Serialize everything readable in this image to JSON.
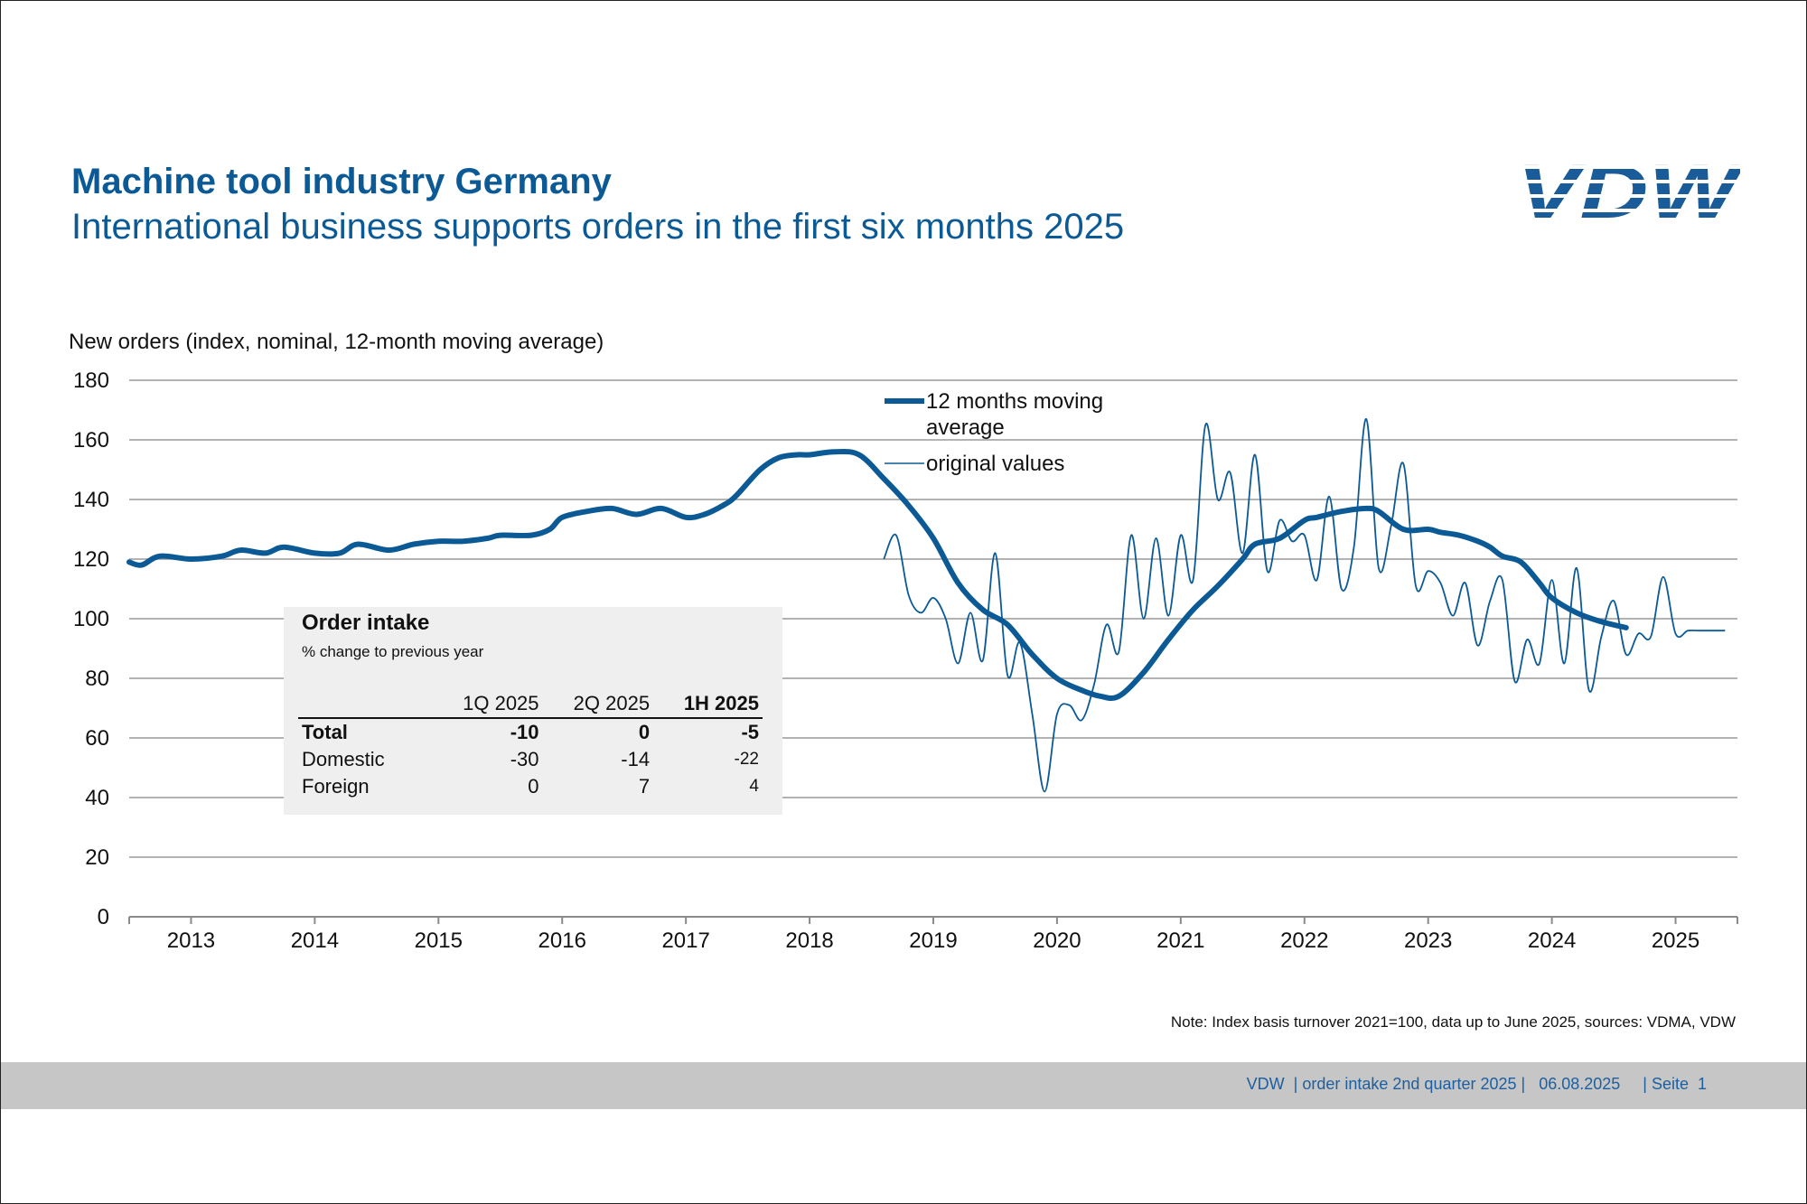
{
  "header": {
    "title": "Machine tool industry Germany",
    "subtitle": "International business supports orders in the first six months 2025",
    "logo_text": "VDW",
    "brand_color": "#1a5c9a"
  },
  "chart_data": {
    "type": "line",
    "title": "New orders (index, nominal, 12-month moving average)",
    "ylabel": "New orders (index, nominal, 12-month moving average)",
    "xlabel": "",
    "ylim": [
      0,
      180
    ],
    "yticks": [
      "0",
      "20",
      "40",
      "60",
      "80",
      "100",
      "120",
      "140",
      "160",
      "180"
    ],
    "xlim": [
      2012.5,
      2025.5
    ],
    "year_labels": [
      "2013",
      "2014",
      "2015",
      "2016",
      "2017",
      "2018",
      "2019",
      "2020",
      "2021",
      "2022",
      "2023",
      "2024",
      "2025"
    ],
    "grid": true,
    "legend_position": "top-center",
    "series": [
      {
        "name": "12 months moving average",
        "color": "#0b5a96",
        "x": [
          2012.5,
          2012.6,
          2012.75,
          2013.0,
          2013.25,
          2013.4,
          2013.6,
          2013.75,
          2014.0,
          2014.2,
          2014.35,
          2014.6,
          2014.8,
          2015.0,
          2015.2,
          2015.4,
          2015.5,
          2015.75,
          2015.9,
          2016.0,
          2016.2,
          2016.4,
          2016.6,
          2016.8,
          2017.0,
          2017.15,
          2017.3,
          2017.4,
          2017.6,
          2017.75,
          2017.9,
          2018.0,
          2018.2,
          2018.4,
          2018.6,
          2018.8,
          2019.0,
          2019.2,
          2019.4,
          2019.6,
          2019.8,
          2020.0,
          2020.2,
          2020.35,
          2020.5,
          2020.7,
          2020.9,
          2021.1,
          2021.3,
          2021.5,
          2021.6,
          2021.8,
          2022.0,
          2022.1,
          2022.3,
          2022.5,
          2022.6,
          2022.8,
          2023.0,
          2023.1,
          2023.25,
          2023.4,
          2023.5,
          2023.6,
          2023.75,
          2023.9,
          2024.0,
          2024.2,
          2024.4,
          2024.6
        ],
        "values": [
          119,
          118,
          121,
          120,
          121,
          123,
          122,
          124,
          122,
          122,
          125,
          123,
          125,
          126,
          126,
          127,
          128,
          128,
          130,
          134,
          136,
          137,
          135,
          137,
          134,
          135,
          138,
          141,
          150,
          154,
          155,
          155,
          156,
          155,
          147,
          138,
          127,
          112,
          103,
          98,
          88,
          80,
          76,
          74,
          74,
          82,
          93,
          103,
          111,
          120,
          125,
          127,
          133,
          134,
          136,
          137,
          136,
          130,
          130,
          129,
          128,
          126,
          124,
          121,
          119,
          112,
          107,
          102,
          99,
          97
        ]
      },
      {
        "name": "original values",
        "color": "#0b5a96",
        "x": [
          2018.6,
          2018.7,
          2018.8,
          2018.9,
          2019.0,
          2019.1,
          2019.2,
          2019.3,
          2019.4,
          2019.5,
          2019.6,
          2019.7,
          2019.8,
          2019.9,
          2020.0,
          2020.1,
          2020.2,
          2020.3,
          2020.4,
          2020.5,
          2020.6,
          2020.7,
          2020.8,
          2020.9,
          2021.0,
          2021.1,
          2021.2,
          2021.3,
          2021.4,
          2021.5,
          2021.6,
          2021.7,
          2021.8,
          2021.9,
          2022.0,
          2022.1,
          2022.2,
          2022.3,
          2022.4,
          2022.5,
          2022.6,
          2022.7,
          2022.8,
          2022.9,
          2023.0,
          2023.1,
          2023.2,
          2023.3,
          2023.4,
          2023.5,
          2023.6,
          2023.7,
          2023.8,
          2023.9,
          2024.0,
          2024.1,
          2024.2,
          2024.3,
          2024.4,
          2024.5,
          2024.6,
          2024.7,
          2024.8,
          2024.9,
          2025.0,
          2025.1,
          2025.2,
          2025.3,
          2025.4
        ],
        "values": [
          120,
          128,
          108,
          102,
          107,
          100,
          85,
          102,
          86,
          122,
          81,
          92,
          68,
          42,
          68,
          71,
          66,
          78,
          98,
          89,
          128,
          100,
          127,
          101,
          128,
          113,
          165,
          140,
          149,
          122,
          155,
          116,
          133,
          126,
          128,
          113,
          141,
          110,
          124,
          167,
          117,
          131,
          152,
          111,
          116,
          112,
          101,
          112,
          91,
          106,
          113,
          79,
          93,
          85,
          113,
          85,
          117,
          76,
          94,
          106,
          88,
          95,
          94,
          114,
          95,
          96,
          96,
          96,
          96
        ]
      }
    ]
  },
  "legend": {
    "moving_avg_line1": "12 months moving",
    "moving_avg_line2": "average",
    "original": "original values"
  },
  "order_table": {
    "title": "Order intake",
    "subtitle": "% change to previous year",
    "columns": [
      "1Q 2025",
      "2Q 2025",
      "1H 2025"
    ],
    "rows": [
      {
        "label": "Total",
        "values": [
          "-10",
          "0",
          "-5"
        ]
      },
      {
        "label": "Domestic",
        "values": [
          "-30",
          "-14",
          "-22"
        ]
      },
      {
        "label": "Foreign",
        "values": [
          "0",
          "7",
          "4"
        ]
      }
    ]
  },
  "note": "Note: Index basis turnover 2021=100, data up to June 2025, sources: VDMA, VDW",
  "footer": {
    "text": "VDW  | order intake 2nd quarter 2025 |   06.08.2025     | Seite  1"
  }
}
